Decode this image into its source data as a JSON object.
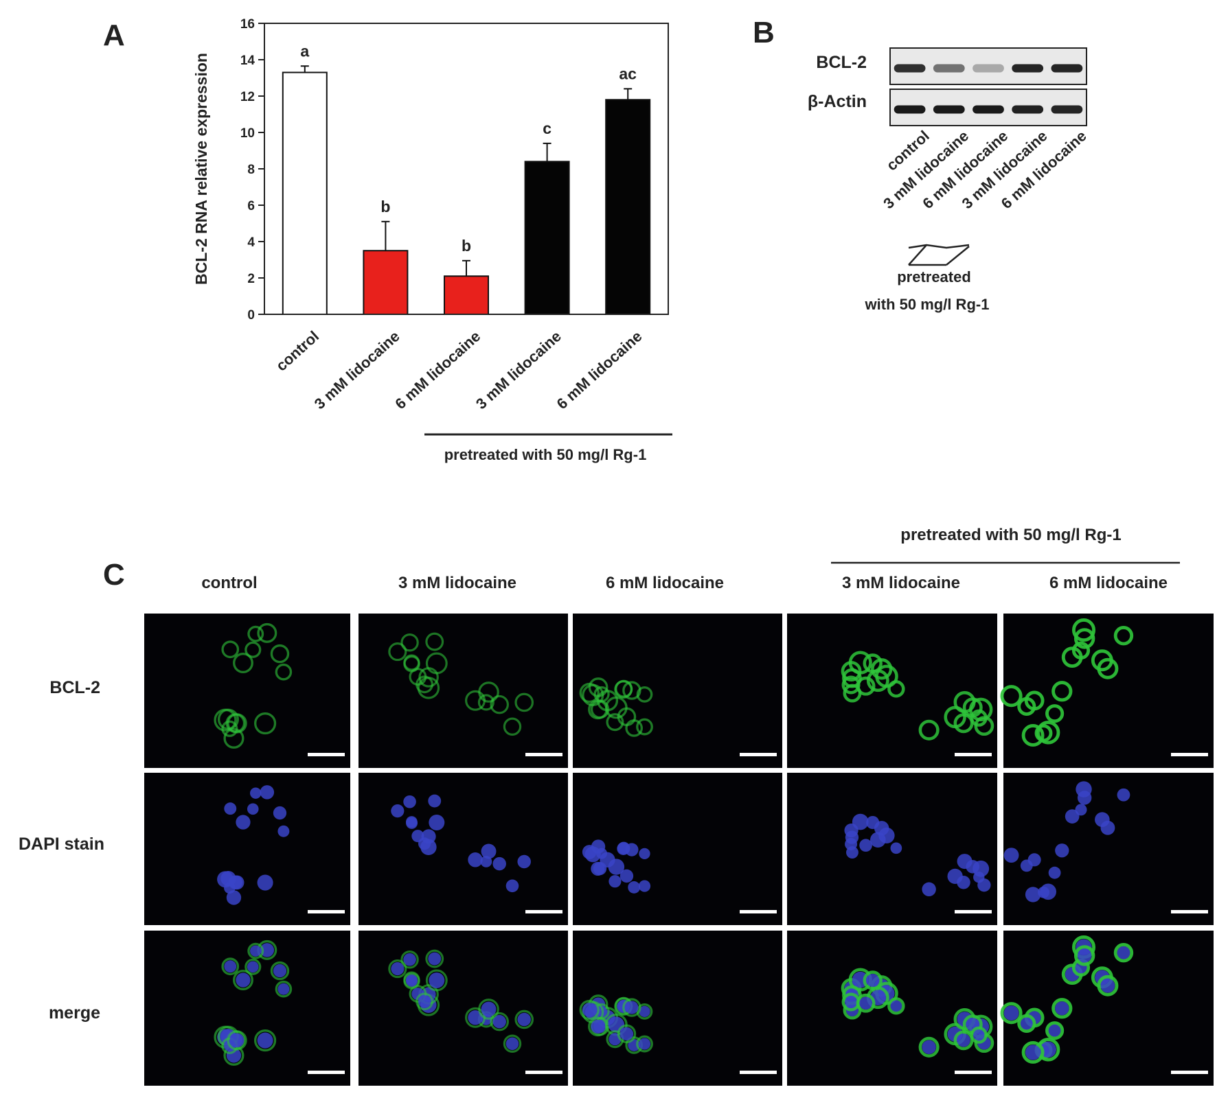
{
  "panels": {
    "a": "A",
    "b": "B",
    "c": "C"
  },
  "chart_data": {
    "type": "bar",
    "categories": [
      "control",
      "3 mM lidocaine",
      "6 mM lidocaine",
      "3 mM lidocaine",
      "6 mM lidocaine"
    ],
    "values": [
      13.3,
      3.5,
      2.1,
      8.4,
      11.8
    ],
    "errors": [
      0.35,
      1.6,
      0.85,
      1.0,
      0.6
    ],
    "significance": [
      "a",
      "b",
      "b",
      "c",
      "ac"
    ],
    "bar_colors": [
      "#ffffff",
      "#e8211c",
      "#e8211c",
      "#050505",
      "#050505"
    ],
    "ylabel": "BCL-2  RNA relative expression",
    "ylim": [
      0,
      16
    ],
    "yticks": [
      0,
      2,
      4,
      6,
      8,
      10,
      12,
      14,
      16
    ],
    "group_label": "pretreated with 50 mg/l  Rg-1",
    "grid": false
  },
  "blot": {
    "rows": [
      "BCL-2",
      "β-Actin"
    ],
    "lanes": [
      "control",
      "3 mM lidocaine",
      "6 mM lidocaine",
      "3 mM lidocaine",
      "6 mM lidocaine"
    ],
    "band_intensity": {
      "BCL-2": [
        0.85,
        0.55,
        0.3,
        0.9,
        0.9
      ],
      "β-Actin": [
        0.95,
        0.95,
        0.95,
        0.92,
        0.9
      ]
    },
    "group_label_line1": "pretreated",
    "group_label_line2": "with 50 mg/l  Rg-1"
  },
  "micro": {
    "group_label": "pretreated with 50 mg/l  Rg-1",
    "columns": [
      "control",
      "3 mM lidocaine",
      "6 mM lidocaine",
      "3 mM lidocaine",
      "6 mM lidocaine"
    ],
    "rows": [
      "BCL-2",
      "DAPI stain",
      "merge"
    ],
    "bcl2_level": [
      0.45,
      0.4,
      0.45,
      0.85,
      0.95
    ],
    "colors": {
      "bcl2": "#2fc43a",
      "dapi": "#3a44c8",
      "background": "#030306"
    }
  }
}
